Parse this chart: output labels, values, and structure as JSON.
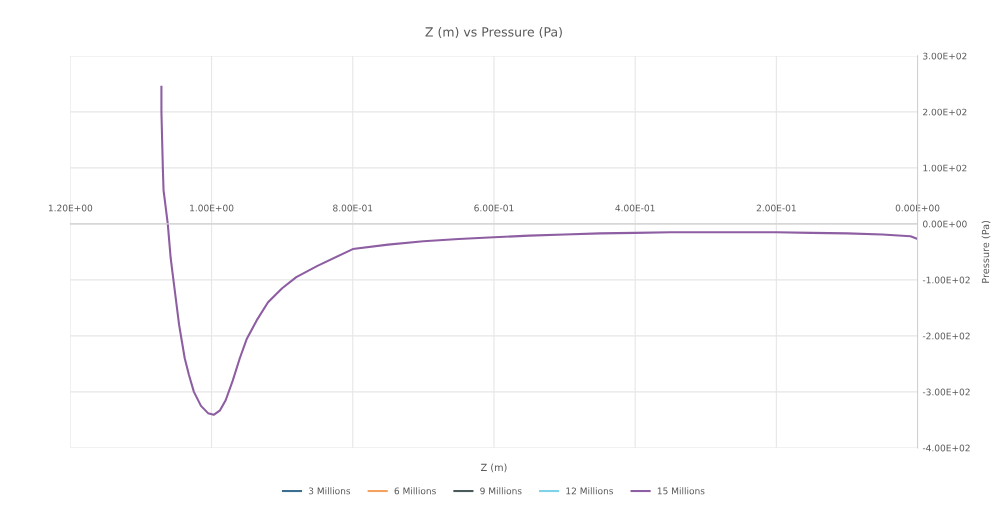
{
  "chart_data": {
    "type": "line",
    "title": "Z (m) vs Pressure (Pa)",
    "xlabel": "Z (m)",
    "ylabel": "Pressure (Pa)",
    "x": [
      1.071,
      1.071,
      1.07,
      1.069,
      1.068,
      1.066,
      1.064,
      1.062,
      1.06,
      1.058,
      1.055,
      1.052,
      1.049,
      1.046,
      1.042,
      1.038,
      1.032,
      1.025,
      1.015,
      1.005,
      0.997,
      0.988,
      0.98,
      0.97,
      0.96,
      0.95,
      0.935,
      0.92,
      0.9,
      0.88,
      0.85,
      0.8,
      0.75,
      0.7,
      0.65,
      0.6,
      0.55,
      0.5,
      0.45,
      0.4,
      0.35,
      0.3,
      0.25,
      0.2,
      0.15,
      0.1,
      0.05,
      0.01,
      0.0
    ],
    "series": [
      {
        "name": "3 Millions",
        "color": "#3b6e8f",
        "values": [
          null,
          null,
          null,
          null,
          null,
          null,
          null,
          null,
          null,
          null,
          null,
          null,
          null,
          null,
          null,
          null,
          null,
          null,
          null,
          null,
          null,
          null,
          null,
          null,
          null,
          null,
          null,
          null,
          null,
          null,
          null,
          null,
          null,
          null,
          null,
          null,
          null,
          null,
          null,
          null,
          null,
          null,
          null,
          null,
          null,
          null,
          null,
          null,
          null
        ]
      },
      {
        "name": "6 Millions",
        "color": "#f4a261",
        "values": [
          null,
          null,
          null,
          null,
          null,
          null,
          null,
          null,
          null,
          null,
          null,
          null,
          null,
          null,
          null,
          null,
          null,
          null,
          null,
          null,
          null,
          null,
          null,
          null,
          null,
          null,
          null,
          null,
          null,
          null,
          null,
          null,
          null,
          null,
          null,
          null,
          null,
          null,
          null,
          null,
          null,
          null,
          null,
          null,
          null,
          null,
          null,
          null,
          null
        ]
      },
      {
        "name": "9 Millions",
        "color": "#4a5a5a",
        "values": [
          null,
          null,
          null,
          null,
          null,
          null,
          null,
          null,
          null,
          null,
          null,
          null,
          null,
          null,
          null,
          null,
          null,
          null,
          null,
          null,
          null,
          null,
          null,
          null,
          null,
          null,
          null,
          null,
          null,
          null,
          null,
          null,
          null,
          null,
          null,
          null,
          null,
          null,
          null,
          null,
          null,
          null,
          null,
          null,
          null,
          null,
          null,
          null,
          null
        ]
      },
      {
        "name": "12 Millions",
        "color": "#7fd3e8",
        "values": [
          null,
          null,
          null,
          null,
          null,
          null,
          null,
          null,
          null,
          null,
          null,
          null,
          null,
          null,
          null,
          null,
          null,
          null,
          null,
          null,
          null,
          null,
          null,
          null,
          null,
          null,
          null,
          null,
          null,
          null,
          null,
          null,
          null,
          null,
          null,
          null,
          null,
          null,
          null,
          null,
          null,
          null,
          null,
          null,
          null,
          null,
          null,
          null,
          null
        ]
      },
      {
        "name": "15 Millions",
        "color": "#8e5ea2",
        "values": [
          245,
          200,
          150,
          100,
          60,
          40,
          20,
          0,
          -30,
          -60,
          -90,
          -120,
          -150,
          -180,
          -210,
          -240,
          -270,
          -300,
          -325,
          -338,
          -341,
          -333,
          -315,
          -280,
          -240,
          -205,
          -170,
          -140,
          -115,
          -95,
          -75,
          -45,
          -37,
          -31,
          -27,
          -24,
          -21,
          -19,
          -17,
          -16,
          -15,
          -15,
          -15,
          -15,
          -16,
          -17,
          -19,
          -22,
          -27
        ]
      }
    ],
    "xlim": [
      1.2,
      0
    ],
    "xticks": [
      {
        "value": 1.2,
        "label": "1.20E+00"
      },
      {
        "value": 1.0,
        "label": "1.00E+00"
      },
      {
        "value": 0.8,
        "label": "8.00E-01"
      },
      {
        "value": 0.6,
        "label": "6.00E-01"
      },
      {
        "value": 0.4,
        "label": "4.00E-01"
      },
      {
        "value": 0.2,
        "label": "2.00E-01"
      },
      {
        "value": 0,
        "label": "0.00E+00"
      }
    ],
    "ylim": [
      -400,
      300
    ],
    "yticks": [
      {
        "value": -400,
        "label": "-4.00E+02"
      },
      {
        "value": -300,
        "label": "-3.00E+02"
      },
      {
        "value": -200,
        "label": "-2.00E+02"
      },
      {
        "value": -100,
        "label": "-1.00E+02"
      },
      {
        "value": 0,
        "label": "0.00E+00"
      },
      {
        "value": 100,
        "label": "1.00E+02"
      },
      {
        "value": 200,
        "label": "2.00E+02"
      },
      {
        "value": 300,
        "label": "3.00E+02"
      }
    ],
    "grid": true,
    "legend": "bottom",
    "marker": "none",
    "line_style": "solid"
  }
}
